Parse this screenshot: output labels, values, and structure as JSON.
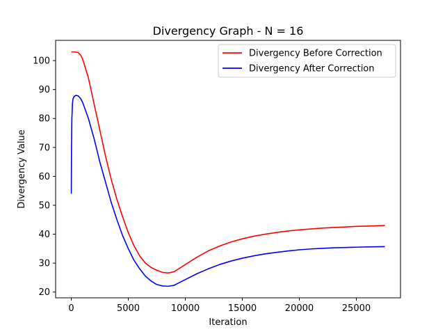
{
  "chart_data": {
    "type": "line",
    "title": "Divergency Graph - N =  16",
    "xlabel": "Iteration",
    "ylabel": "Divergency Value",
    "xlim": [
      -1375,
      28875
    ],
    "ylim": [
      18.0,
      107.0
    ],
    "xticks": [
      0,
      5000,
      10000,
      15000,
      20000,
      25000
    ],
    "yticks": [
      20,
      30,
      40,
      50,
      60,
      70,
      80,
      90,
      100
    ],
    "grid": false,
    "legend_position": "top-right",
    "series": [
      {
        "name": "Divergency Before Correction",
        "color": "#ff0000",
        "x": [
          0,
          300,
          600,
          800,
          1000,
          1500,
          2000,
          2500,
          3000,
          3500,
          4000,
          4500,
          5000,
          5500,
          6000,
          6500,
          7000,
          7500,
          8000,
          8500,
          9000,
          9500,
          10000,
          11000,
          12000,
          13000,
          14000,
          15000,
          16000,
          17000,
          18000,
          19000,
          20000,
          21000,
          22000,
          23000,
          24000,
          25000,
          26000,
          27500
        ],
        "values": [
          103.0,
          103.0,
          102.8,
          102.0,
          100.5,
          94.0,
          85.0,
          76.0,
          67.0,
          59.0,
          52.0,
          46.0,
          40.5,
          36.0,
          32.5,
          30.0,
          28.5,
          27.5,
          26.8,
          26.6,
          27.0,
          28.2,
          29.5,
          32.0,
          34.2,
          35.9,
          37.3,
          38.4,
          39.3,
          40.0,
          40.6,
          41.1,
          41.5,
          41.8,
          42.1,
          42.3,
          42.5,
          42.7,
          42.8,
          43.0
        ]
      },
      {
        "name": "Divergency After Correction",
        "color": "#0000ff",
        "x": [
          0,
          20,
          50,
          100,
          150,
          250,
          400,
          600,
          800,
          1000,
          1500,
          2000,
          2500,
          3000,
          3500,
          4000,
          4500,
          5000,
          5500,
          6000,
          6500,
          7000,
          7500,
          8000,
          8500,
          9000,
          9500,
          10000,
          11000,
          12000,
          13000,
          14000,
          15000,
          16000,
          17000,
          18000,
          19000,
          20000,
          21000,
          22000,
          23000,
          24000,
          25000,
          26000,
          27500
        ],
        "values": [
          54.0,
          70.0,
          80.0,
          85.0,
          86.8,
          87.6,
          88.0,
          87.8,
          87.0,
          85.5,
          80.0,
          73.0,
          65.0,
          58.0,
          51.0,
          45.0,
          39.5,
          35.0,
          31.0,
          28.0,
          25.5,
          23.8,
          22.6,
          22.1,
          22.0,
          22.3,
          23.3,
          24.3,
          26.3,
          28.0,
          29.5,
          30.7,
          31.7,
          32.5,
          33.2,
          33.7,
          34.2,
          34.6,
          34.9,
          35.1,
          35.3,
          35.4,
          35.5,
          35.6,
          35.7
        ]
      }
    ]
  }
}
